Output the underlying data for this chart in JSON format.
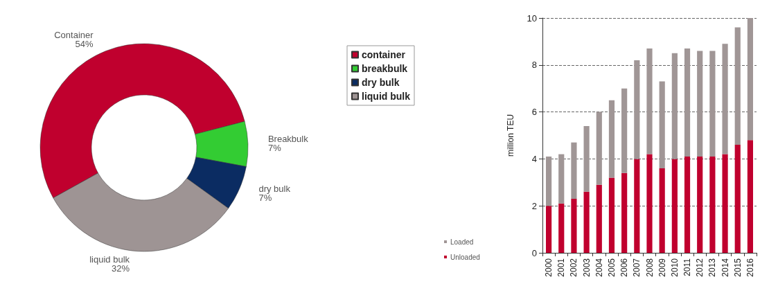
{
  "chart_data": [
    {
      "type": "donut",
      "categories": [
        "container",
        "breakbulk",
        "dry bulk",
        "liquid bulk"
      ],
      "values": [
        54,
        7,
        7,
        32
      ],
      "colors": [
        "#c0002e",
        "#33cc33",
        "#0b2c62",
        "#9e9494"
      ],
      "value_labels": [
        "54%",
        "7%",
        "7%",
        "32%"
      ],
      "annotations": [
        {
          "text": "Container",
          "x": "container"
        },
        {
          "text": "Breakbulk",
          "x": "breakbulk"
        },
        {
          "text": "dry bulk",
          "x": "dry bulk"
        },
        {
          "text": "liquid bulk",
          "x": "liquid bulk"
        }
      ],
      "legend": "right"
    },
    {
      "type": "bar",
      "stacked": true,
      "ylabel": "million TEU",
      "categories": [
        "2000",
        "2001",
        "2002",
        "2003",
        "2004",
        "2005",
        "2006",
        "2007",
        "2008",
        "2009",
        "2010",
        "2011",
        "2012",
        "2013",
        "2014",
        "2015",
        "2016"
      ],
      "series": [
        {
          "name": "Unloaded",
          "color": "#c0002e",
          "values": [
            2.0,
            2.1,
            2.3,
            2.6,
            2.9,
            3.2,
            3.4,
            4.0,
            4.2,
            3.6,
            4.0,
            4.1,
            4.1,
            4.1,
            4.2,
            4.6,
            4.8
          ]
        },
        {
          "name": "Loaded",
          "color": "#a09696",
          "values": [
            2.1,
            2.1,
            2.4,
            2.8,
            3.1,
            3.3,
            3.6,
            4.2,
            4.5,
            3.7,
            4.5,
            4.6,
            4.5,
            4.5,
            4.7,
            5.0,
            5.2
          ]
        }
      ],
      "ylim": [
        0,
        10
      ],
      "yticks": [
        0,
        2,
        4,
        6,
        8,
        10
      ],
      "grid": "y",
      "legend": "bottom left"
    }
  ]
}
